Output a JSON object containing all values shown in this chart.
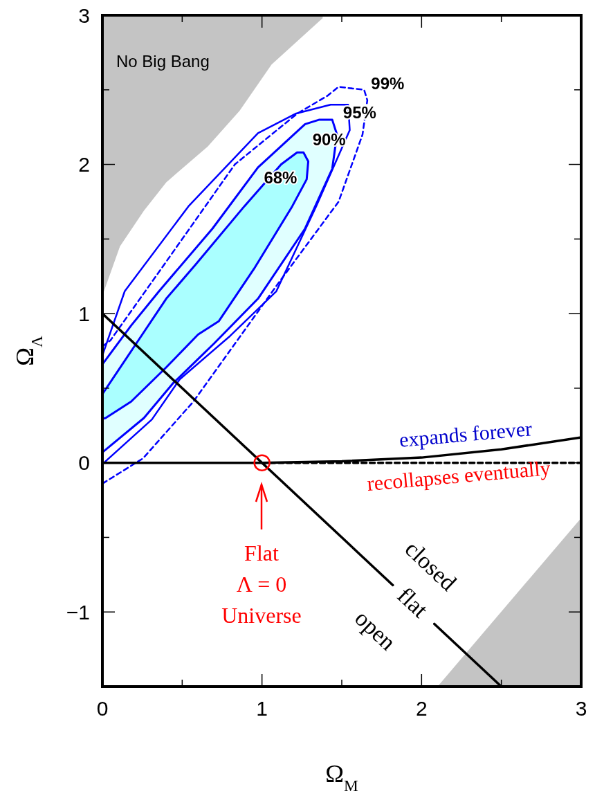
{
  "chart_data": {
    "type": "line",
    "xlabel": "Ω$_{M}$",
    "ylabel": "Ω$_{Λ}$",
    "xlim": [
      0,
      3
    ],
    "ylim": [
      -1.5,
      3
    ],
    "xticks": [
      0,
      {
        "value": 0.5,
        "label": null
      },
      1,
      {
        "value": 1.5,
        "label": null
      },
      2,
      {
        "value": 2.5,
        "label": null
      },
      3
    ],
    "yticks": [
      {
        "value": -1.5,
        "label": null
      },
      -1,
      {
        "value": -0.5,
        "label": null
      },
      0,
      {
        "value": 0.5,
        "label": null
      },
      1,
      {
        "value": 1.5,
        "label": null
      },
      2,
      {
        "value": 2.5,
        "label": null
      },
      3
    ],
    "grid": false,
    "legend": false,
    "series": [
      {
        "type": "area",
        "name": "No Big Bang",
        "color": "#c4c4c4",
        "x": [
          0,
          0,
          0.01,
          0.11,
          0.26,
          0.4,
          0.66,
          0.86,
          1.06,
          1.38,
          1.38
        ],
        "values": [
          3,
          1.145,
          1.15,
          1.45,
          1.69,
          1.88,
          2.12,
          2.36,
          2.67,
          2.98,
          3
        ]
      },
      {
        "type": "area",
        "color": "#c4c4c4",
        "x": [
          2.1,
          3,
          3
        ],
        "values": [
          -1.5,
          -0.37,
          -1.5
        ]
      },
      {
        "name": "99%",
        "color": "#0000ff",
        "line_style": "dashed",
        "x": [
          0,
          0.05,
          0.355,
          0.83,
          1.22,
          1.41,
          1.48,
          1.64,
          1.66,
          1.63,
          1.48,
          1.1,
          0.57,
          0.255,
          0
        ],
        "values": [
          0.78,
          0.82,
          1.28,
          2,
          2.34,
          2.46,
          2.52,
          2.5,
          2.43,
          2.2,
          1.75,
          1.2,
          0.41,
          0.03,
          -0.14
        ]
      },
      {
        "name": "95%",
        "color": "#0000ff",
        "x": [
          0,
          0.14,
          0.54,
          0.975,
          1.21,
          1.43,
          1.54,
          1.55,
          1.34,
          1.09,
          0.8,
          0.485,
          0.31,
          0.03,
          0
        ],
        "values": [
          0.72,
          1.15,
          1.72,
          2.21,
          2.34,
          2.4,
          2.4,
          2.23,
          1.72,
          1.15,
          0.85,
          0.56,
          0.29,
          0.02,
          -0.01
        ]
      },
      {
        "type": "area",
        "name": "90%",
        "color": "#e0ffff",
        "line_style": "solid",
        "x": [
          0,
          0.18,
          0.355,
          0.69,
          0.975,
          1.27,
          1.36,
          1.44,
          1.47,
          1.44,
          1.27,
          0.975,
          0.7,
          0.44,
          0.26,
          0
        ],
        "values": [
          0.66,
          0.92,
          1.15,
          1.57,
          1.98,
          2.27,
          2.3,
          2.3,
          2.2,
          1.97,
          1.57,
          1.1,
          0.8,
          0.53,
          0.3,
          0.07
        ]
      },
      {
        "type": "area",
        "name": "68%",
        "color": "#aaffff",
        "line_style": "solid",
        "x": [
          0,
          0.2,
          0.4,
          0.585,
          0.89,
          1.12,
          1.22,
          1.26,
          1.29,
          1.28,
          1.19,
          0.95,
          0.73,
          0.6,
          0.4,
          0.18,
          0.02,
          0
        ],
        "values": [
          0.46,
          0.78,
          1.1,
          1.33,
          1.72,
          2,
          2.08,
          2.08,
          2.02,
          1.9,
          1.72,
          1.3,
          0.95,
          0.86,
          0.64,
          0.41,
          0.3,
          0.295
        ]
      },
      {
        "color": "#000000",
        "line_style": "dashed",
        "x": [
          1,
          3
        ],
        "values": [
          0,
          0
        ]
      },
      {
        "color": "#000000",
        "x": [
          0,
          1,
          1.5,
          2,
          2.5,
          3
        ],
        "values": [
          0,
          0,
          0.01,
          0.035,
          0.09,
          0.17
        ]
      },
      {
        "color": "#000000",
        "x": [
          0,
          1.82,
          1.84,
          2.08,
          2.5
        ],
        "values": [
          1,
          -0.82,
          null,
          -1.08,
          -1.5
        ]
      },
      {
        "type": "scatter",
        "color": "#ff0000",
        "marker": "circle",
        "x": [
          1
        ],
        "values": [
          0
        ]
      }
    ],
    "annotations": [
      "Flat\nΛ = 0\nUniverse",
      "expands forever",
      "recollapses eventually",
      "closed",
      "flat",
      "open"
    ]
  }
}
